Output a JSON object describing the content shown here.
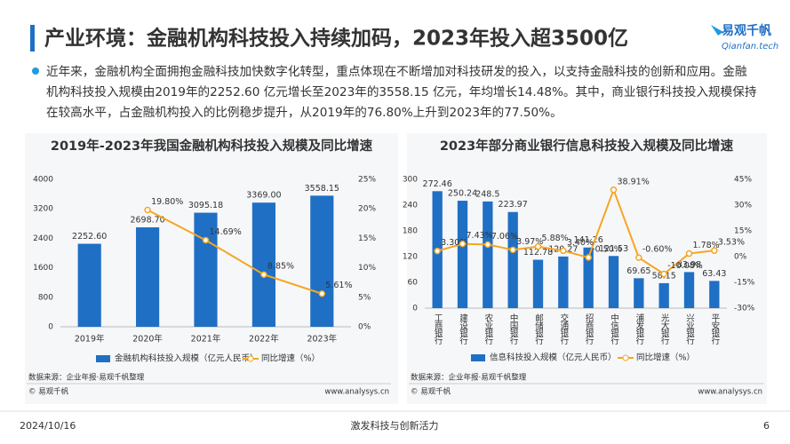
{
  "header": {
    "title": "产业环境：金融机构科技投入持续加码，2023年投入超3500亿",
    "logo": "易观千帆",
    "logo_sub": "Qianfan.tech"
  },
  "body": {
    "text": "近年来，金融机构全面拥抱金融科技加快数字化转型，重点体现在不断增加对科技研发的投入，以支持金融科技的创新和应用。金融机构科技投入规模由2019年的2252.60 亿元增长至2023年的3558.15 亿元，年均增长14.48%。其中，商业银行科技投入规模保持在较高水平，占金融机构投入的比例稳步提升，从2019年的76.80%上升到2023年的77.50%。"
  },
  "chart_data": [
    {
      "type": "bar",
      "title": "2019年-2023年我国金融机构科技投入规模及同比增速",
      "categories": [
        "2019年",
        "2020年",
        "2021年",
        "2022年",
        "2023年"
      ],
      "series": [
        {
          "name": "金融机构科技投入规模（亿元人民币）",
          "color": "#1f6fc5",
          "values": [
            2252.6,
            2698.7,
            3095.18,
            3369.0,
            3558.15
          ],
          "value_labels": [
            "2252.60",
            "2698.70",
            "3095.18",
            "3369.00",
            "3558.15"
          ]
        },
        {
          "name": "同比增速（%）",
          "color": "#f5a623",
          "type": "line",
          "axis": "y2",
          "values": [
            null,
            19.8,
            14.69,
            8.85,
            5.61
          ],
          "value_labels": [
            null,
            "19.80%",
            "14.69%",
            "8.85%",
            "5.61%"
          ]
        }
      ],
      "ylim": [
        0,
        4000
      ],
      "yticks": [
        0,
        800,
        1600,
        2400,
        3200,
        4000
      ],
      "y2lim": [
        0,
        25
      ],
      "y2ticks": [
        {
          "value": 0,
          "label": "0%"
        },
        {
          "value": 5,
          "label": "5%"
        },
        {
          "value": 10,
          "label": "10%"
        },
        {
          "value": 15,
          "label": "15%"
        },
        {
          "value": 20,
          "label": "20%"
        },
        {
          "value": 25,
          "label": "25%"
        }
      ],
      "grid": false,
      "vertical_categories": false,
      "source": "数据来源：企业年报·易观千帆整理",
      "copyright": "© 易观千帆",
      "site": "www.analysys.cn"
    },
    {
      "type": "bar",
      "title": "2023年部分商业银行信息科技投入规模及同比增速",
      "categories": [
        "工商银行",
        "建设银行",
        "农业银行",
        "中国银行",
        "邮储银行",
        "交通银行",
        "招商银行",
        "中信银行",
        "浦发银行",
        "光大银行",
        "兴业银行",
        "平安银行"
      ],
      "series": [
        {
          "name": "信息科技投入规模（亿元人民币）",
          "color": "#1f6fc5",
          "values": [
            272.46,
            250.24,
            248.5,
            223.97,
            112.78,
            120.27,
            141.26,
            121.53,
            69.65,
            58.15,
            83.98,
            63.43
          ]
        },
        {
          "name": "同比增速（%）",
          "color": "#f5a623",
          "type": "line",
          "axis": "y2",
          "values": [
            3.3,
            7.43,
            7.06,
            3.97,
            5.88,
            3.4,
            -0.5,
            38.91,
            -0.6,
            -10.08,
            1.78,
            3.53
          ],
          "value_labels": [
            "3.30%",
            "7.43%",
            "7.06%",
            "3.97%",
            "5.88%",
            "3.40%",
            "-0.50%",
            "38.91%",
            "-0.60%",
            "-10.08%",
            "1.78%",
            "3.53%"
          ]
        }
      ],
      "ylim": [
        0,
        300
      ],
      "yticks": [
        0,
        60,
        120,
        180,
        240,
        300
      ],
      "y2lim": [
        -30,
        45
      ],
      "y2ticks": [
        {
          "value": -30,
          "label": "-30%"
        },
        {
          "value": -15,
          "label": "-15%"
        },
        {
          "value": 0,
          "label": "0%"
        },
        {
          "value": 15,
          "label": "15%"
        },
        {
          "value": 30,
          "label": "30%"
        },
        {
          "value": 45,
          "label": "45%"
        }
      ],
      "grid": false,
      "vertical_categories": true,
      "source": "数据来源：企业年报·易观千帆整理",
      "copyright": "© 易观千帆",
      "site": "www.analysys.cn"
    }
  ],
  "footer": {
    "date": "2024/10/16",
    "slogan": "激发科技与创新活力",
    "page": "6"
  }
}
